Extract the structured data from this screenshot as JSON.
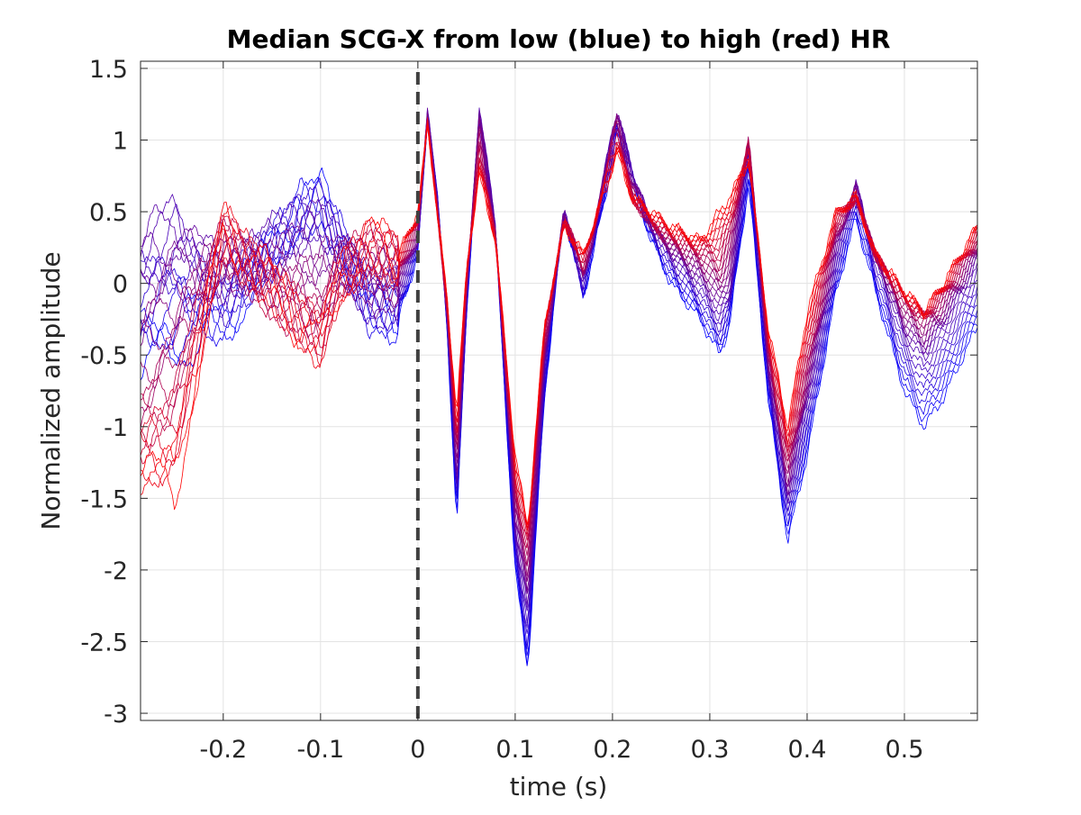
{
  "chart_data": {
    "type": "line",
    "title": "Median SCG-X from low (blue) to high (red) HR",
    "xlabel": "time (s)",
    "ylabel": "Normalized amplitude",
    "xlim": [
      -0.285,
      0.575
    ],
    "ylim": [
      -3.05,
      1.55
    ],
    "x_ticks": [
      -0.2,
      -0.1,
      0,
      0.1,
      0.2,
      0.3,
      0.4,
      0.5
    ],
    "x_tick_labels": [
      "-0.2",
      "-0.1",
      "0",
      "0.1",
      "0.2",
      "0.3",
      "0.4",
      "0.5"
    ],
    "y_ticks": [
      1.5,
      1,
      0.5,
      0,
      -0.5,
      -1,
      -1.5,
      -2,
      -2.5,
      -3
    ],
    "y_tick_labels": [
      "1.5",
      "1",
      "0.5",
      "0",
      "-0.5",
      "-1",
      "-1.5",
      "-2",
      "-2.5",
      "-3"
    ],
    "grid": true,
    "box": true,
    "color_low_hr": "#0000ff",
    "color_high_hr": "#ff0000",
    "vertical_line": {
      "x": 0,
      "style": "dashed",
      "color": "#404040"
    },
    "series_encoding": "color gradient from low HR (blue) to high HR (red)",
    "series": [
      {
        "hr_rank": 0,
        "color": "#0000ff",
        "x": [
          -0.285,
          -0.25,
          -0.2,
          -0.15,
          -0.12,
          -0.1,
          -0.08,
          -0.05,
          -0.02,
          0,
          0.01,
          0.02,
          0.03,
          0.04,
          0.05,
          0.063,
          0.08,
          0.1,
          0.113,
          0.13,
          0.15,
          0.16,
          0.17,
          0.18,
          0.2,
          0.205,
          0.22,
          0.24,
          0.26,
          0.29,
          0.31,
          0.32,
          0.34,
          0.36,
          0.38,
          0.4,
          0.43,
          0.45,
          0.47,
          0.5,
          0.52,
          0.54,
          0.575
        ],
        "y": [
          -0.55,
          -0.45,
          -0.3,
          0.2,
          0.55,
          0.6,
          0.35,
          -0.2,
          -0.25,
          0.2,
          1.15,
          0.6,
          -0.3,
          -1.7,
          -0.2,
          1.1,
          0.3,
          -2.0,
          -2.7,
          -0.8,
          0.5,
          0.2,
          -0.1,
          0.2,
          0.85,
          1.05,
          0.7,
          0.3,
          0.0,
          -0.25,
          -0.5,
          -0.3,
          0.7,
          -0.8,
          -1.8,
          -1.2,
          -0.05,
          0.45,
          -0.05,
          -0.75,
          -1.0,
          -0.8,
          -0.3
        ]
      },
      {
        "hr_rank": 0.33,
        "color": "#5500aa",
        "x": [
          -0.285,
          -0.25,
          -0.2,
          -0.15,
          -0.12,
          -0.1,
          -0.08,
          -0.05,
          -0.02,
          0,
          0.01,
          0.02,
          0.03,
          0.04,
          0.05,
          0.063,
          0.08,
          0.1,
          0.113,
          0.13,
          0.15,
          0.16,
          0.17,
          0.18,
          0.2,
          0.205,
          0.22,
          0.24,
          0.26,
          0.29,
          0.31,
          0.32,
          0.34,
          0.36,
          0.38,
          0.4,
          0.43,
          0.45,
          0.47,
          0.5,
          0.52,
          0.54,
          0.575
        ],
        "y": [
          0.3,
          0.5,
          0.0,
          0.3,
          0.4,
          0.45,
          0.2,
          -0.1,
          -0.05,
          0.3,
          1.2,
          0.6,
          -0.2,
          -1.4,
          -0.1,
          1.25,
          0.4,
          -1.7,
          -2.3,
          -0.6,
          0.5,
          0.25,
          0.0,
          0.3,
          1.1,
          1.2,
          0.8,
          0.4,
          0.2,
          0.0,
          -0.2,
          -0.1,
          1.0,
          -0.6,
          -1.5,
          -0.8,
          0.2,
          0.7,
          0.2,
          -0.35,
          -0.5,
          -0.3,
          0.15
        ]
      },
      {
        "hr_rank": 0.66,
        "color": "#aa0055",
        "x": [
          -0.285,
          -0.25,
          -0.2,
          -0.15,
          -0.12,
          -0.1,
          -0.08,
          -0.05,
          -0.02,
          0,
          0.01,
          0.02,
          0.03,
          0.04,
          0.05,
          0.063,
          0.08,
          0.1,
          0.113,
          0.13,
          0.15,
          0.16,
          0.17,
          0.18,
          0.2,
          0.205,
          0.22,
          0.24,
          0.26,
          0.29,
          0.31,
          0.32,
          0.34,
          0.36,
          0.38,
          0.4,
          0.43,
          0.45,
          0.47,
          0.5,
          0.52,
          0.54,
          0.575
        ],
        "y": [
          -0.9,
          -0.6,
          0.3,
          -0.1,
          -0.2,
          -0.3,
          0.1,
          0.2,
          0.1,
          0.4,
          1.15,
          0.5,
          -0.2,
          -1.2,
          0.0,
          1.0,
          0.3,
          -1.5,
          -1.9,
          -0.4,
          0.45,
          0.3,
          0.1,
          0.35,
          1.0,
          1.1,
          0.6,
          0.4,
          0.3,
          0.2,
          0.1,
          0.3,
          1.0,
          -0.5,
          -1.3,
          -0.6,
          0.4,
          0.6,
          0.2,
          -0.15,
          -0.25,
          -0.1,
          0.3
        ]
      },
      {
        "hr_rank": 1,
        "color": "#ff0000",
        "x": [
          -0.285,
          -0.25,
          -0.2,
          -0.15,
          -0.12,
          -0.1,
          -0.08,
          -0.05,
          -0.02,
          0,
          0.01,
          0.02,
          0.03,
          0.04,
          0.05,
          0.063,
          0.08,
          0.1,
          0.113,
          0.13,
          0.15,
          0.16,
          0.17,
          0.18,
          0.2,
          0.205,
          0.22,
          0.24,
          0.26,
          0.29,
          0.31,
          0.32,
          0.34,
          0.36,
          0.38,
          0.4,
          0.43,
          0.45,
          0.47,
          0.5,
          0.52,
          0.54,
          0.575
        ],
        "y": [
          -1.3,
          -1.45,
          0.4,
          0.0,
          -0.3,
          -0.45,
          0.0,
          0.3,
          0.2,
          0.5,
          1.1,
          0.5,
          -0.1,
          -0.9,
          0.1,
          0.75,
          0.3,
          -1.2,
          -1.7,
          -0.3,
          0.4,
          0.3,
          0.2,
          0.4,
          0.8,
          0.9,
          0.6,
          0.5,
          0.4,
          0.3,
          0.5,
          0.6,
          0.85,
          -0.3,
          -1.0,
          -0.2,
          0.5,
          0.6,
          0.2,
          -0.05,
          -0.2,
          0.0,
          0.4
        ]
      }
    ]
  }
}
